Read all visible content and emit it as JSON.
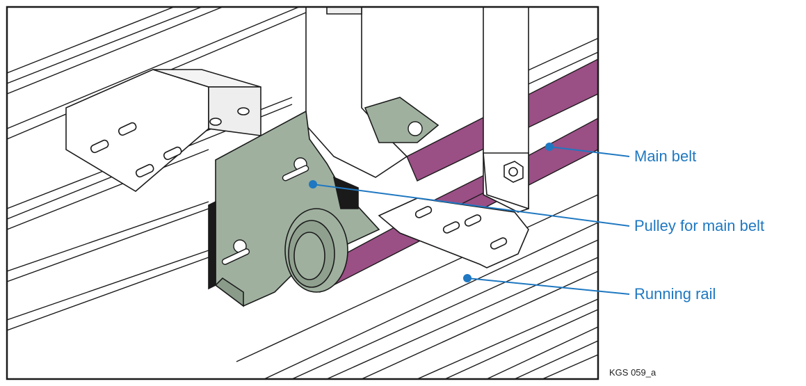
{
  "figure": {
    "reference_code": "KGS 059_a",
    "colors": {
      "line": "#1a1a1a",
      "bracket_fill": "#9fb09f",
      "belt_fill": "#9a4f85",
      "callout": "#1f78c1",
      "background": "#ffffff"
    }
  },
  "callouts": [
    {
      "id": "main-belt",
      "label": "Main belt"
    },
    {
      "id": "pulley",
      "label": "Pulley for main belt"
    },
    {
      "id": "running-rail",
      "label": "Running rail"
    }
  ]
}
